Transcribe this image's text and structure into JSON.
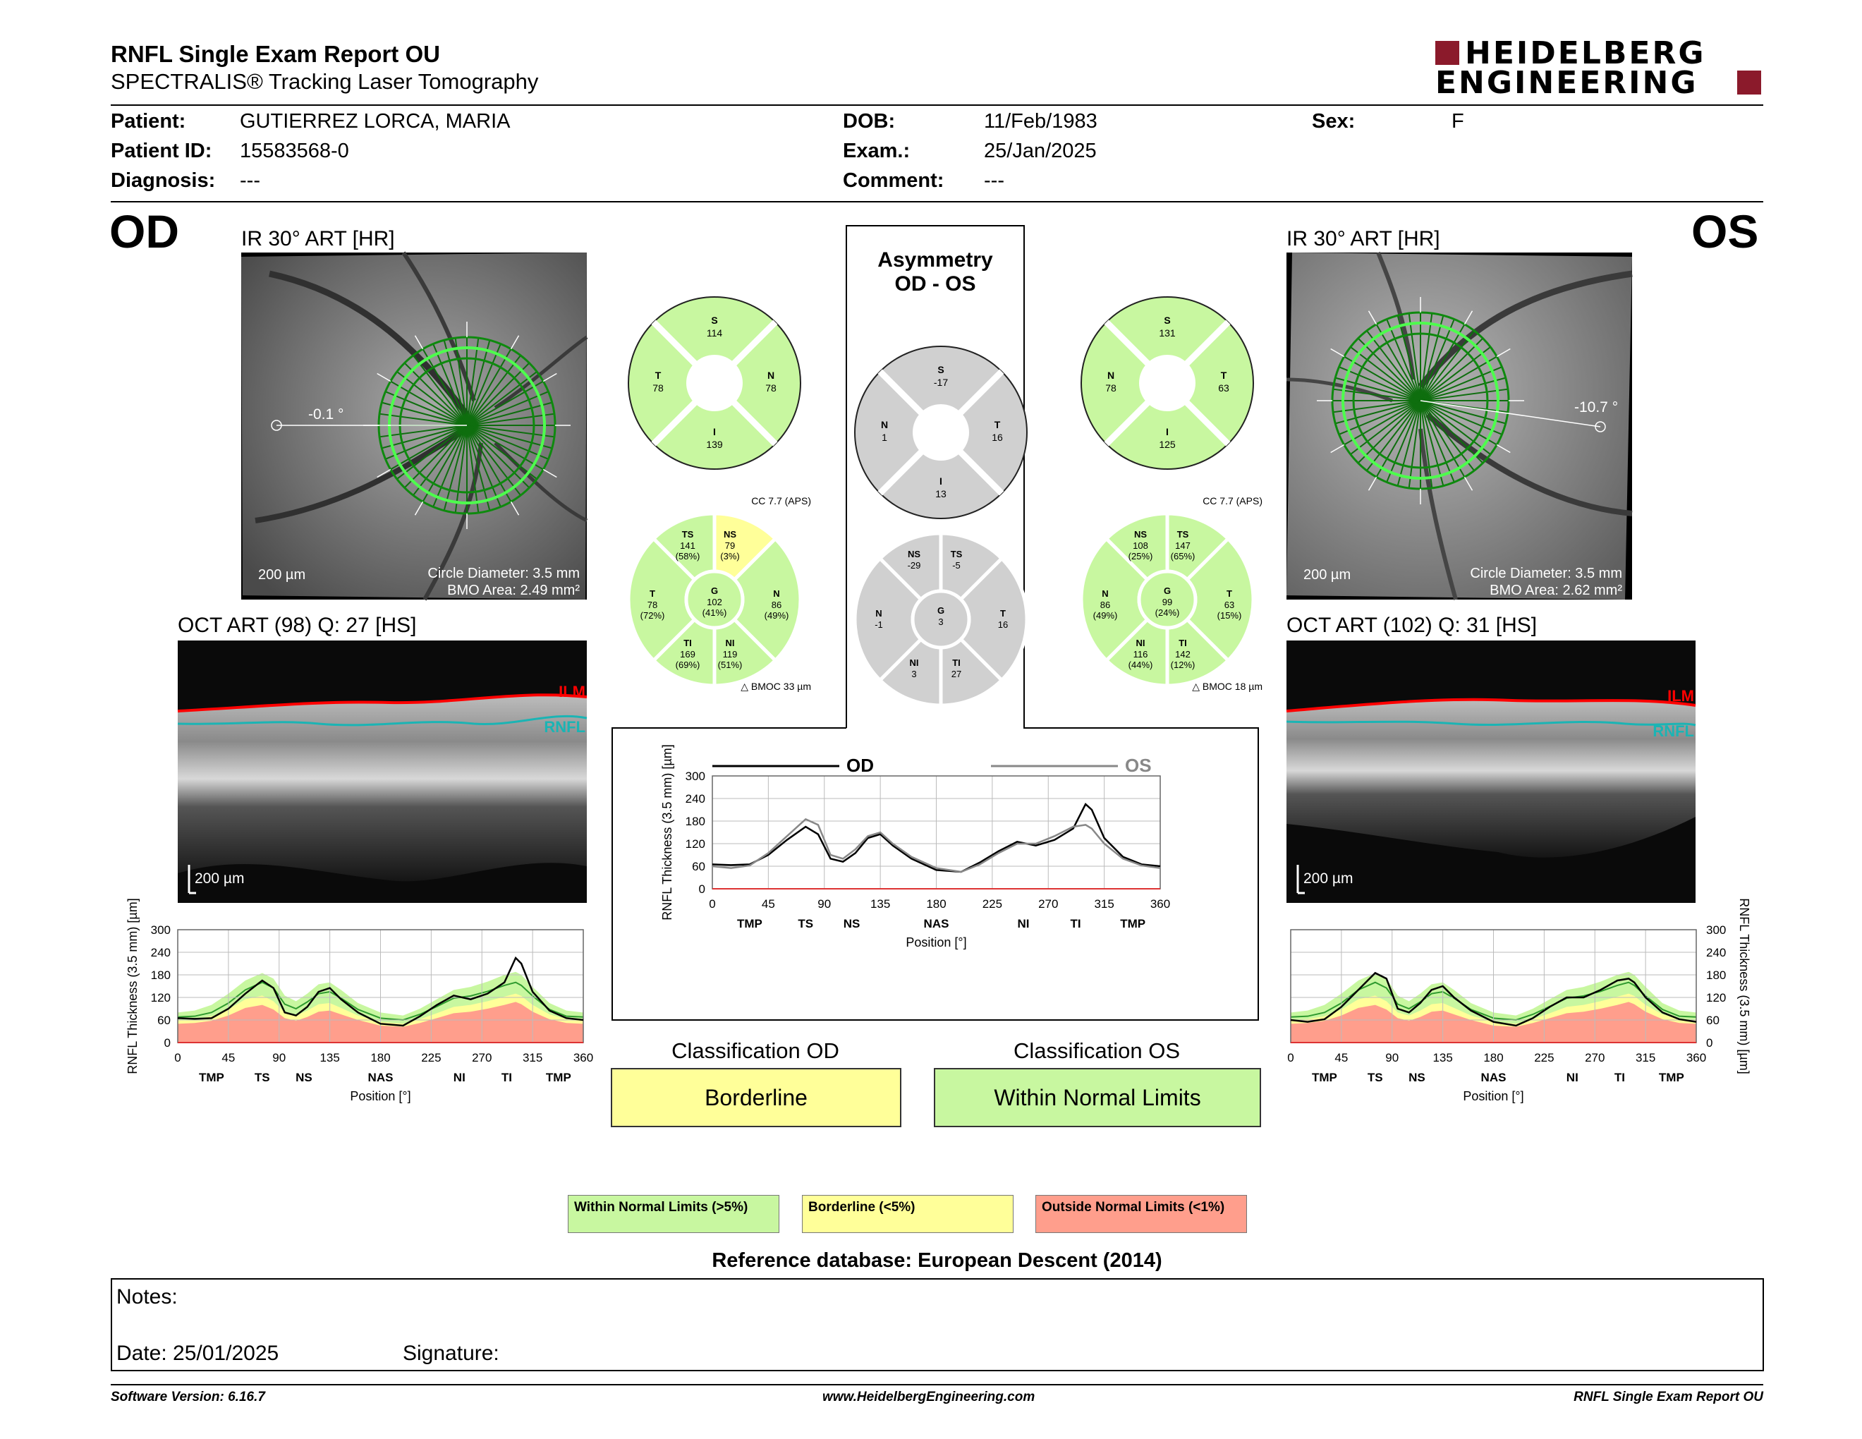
{
  "header": {
    "title": "RNFL Single Exam Report OU",
    "subtitle": "SPECTRALIS® Tracking Laser Tomography",
    "logo_line1": "HEIDELBERG",
    "logo_line2": "ENGINEERING"
  },
  "patient": {
    "patient_label": "Patient:",
    "patient_value": "GUTIERREZ LORCA, MARIA",
    "id_label": "Patient ID:",
    "id_value": "15583568-0",
    "diag_label": "Diagnosis:",
    "diag_value": "---",
    "dob_label": "DOB:",
    "dob_value": "11/Feb/1983",
    "exam_label": "Exam.:",
    "exam_value": "25/Jan/2025",
    "comment_label": "Comment:",
    "comment_value": "---",
    "sex_label": "Sex:",
    "sex_value": "F"
  },
  "od": {
    "eye": "OD",
    "fundus_title": "IR 30° ART [HR]",
    "angle": "-0.1 °",
    "scale": "200 µm",
    "circle_diameter": "Circle Diameter: 3.5 mm",
    "bmo_area": "BMO Area: 2.49 mm²",
    "oct_title": "OCT ART (98) Q: 27 [HS]",
    "oct_scale": "200 µm",
    "ilm": "ILM",
    "rnfl": "RNFL"
  },
  "os": {
    "eye": "OS",
    "fundus_title": "IR 30° ART [HR]",
    "angle": "-10.7 °",
    "scale": "200 µm",
    "circle_diameter": "Circle Diameter: 3.5 mm",
    "bmo_area": "BMO Area: 2.62 mm²",
    "oct_title": "OCT ART (102) Q: 31 [HS]",
    "oct_scale": "200 µm",
    "ilm": "ILM",
    "rnfl": "RNFL"
  },
  "asymmetry": {
    "title1": "Asymmetry",
    "title2": "OD - OS"
  },
  "circles": {
    "od_quad": {
      "S": "114",
      "T": "78",
      "N": "78",
      "I": "139"
    },
    "os_quad": {
      "S": "131",
      "N": "78",
      "T": "63",
      "I": "125"
    },
    "asym_quad": {
      "S": "-17",
      "N": "1",
      "T": "16",
      "I": "13"
    },
    "od_sect": {
      "cc": "CC 7.7 (APS)",
      "bmoc": "BMOC 33 µm",
      "TS": [
        "141",
        "(58%)"
      ],
      "NS": [
        "79",
        "(3%)"
      ],
      "T": [
        "78",
        "(72%)"
      ],
      "G": [
        "102",
        "(41%)"
      ],
      "N": [
        "86",
        "(49%)"
      ],
      "TI": [
        "169",
        "(69%)"
      ],
      "NI": [
        "119",
        "(51%)"
      ]
    },
    "os_sect": {
      "cc": "CC 7.7 (APS)",
      "bmoc": "BMOC 18 µm",
      "NS": [
        "108",
        "(25%)"
      ],
      "TS": [
        "147",
        "(65%)"
      ],
      "N": [
        "86",
        "(49%)"
      ],
      "G": [
        "99",
        "(24%)"
      ],
      "T": [
        "63",
        "(15%)"
      ],
      "NI": [
        "116",
        "(44%)"
      ],
      "TI": [
        "142",
        "(12%)"
      ]
    },
    "asym_sect": {
      "NS": "-29",
      "TS": "-5",
      "N": "-1",
      "G": "3",
      "T": "16",
      "NI": "3",
      "TI": "27"
    }
  },
  "chart_data": [
    {
      "type": "line",
      "name": "asymmetry-profile",
      "ylabel": "RNFL Thickness (3.5 mm) [µm]",
      "xlabel": "Position [°]",
      "xlim": [
        0,
        360
      ],
      "ylim": [
        0,
        300
      ],
      "xticks": [
        "0",
        "45",
        "90",
        "135",
        "180",
        "225",
        "270",
        "315",
        "360"
      ],
      "yticks": [
        "0",
        "60",
        "120",
        "180",
        "240",
        "300"
      ],
      "sectors": [
        "TMP",
        "TS",
        "NS",
        "NAS",
        "NI",
        "TI",
        "TMP"
      ],
      "x": [
        0,
        15,
        30,
        45,
        60,
        75,
        85,
        95,
        105,
        115,
        125,
        135,
        145,
        160,
        180,
        200,
        215,
        230,
        245,
        260,
        275,
        290,
        300,
        305,
        315,
        330,
        345,
        360
      ],
      "series": [
        {
          "name": "OD",
          "values": [
            65,
            63,
            65,
            90,
            130,
            165,
            145,
            80,
            72,
            95,
            135,
            145,
            115,
            80,
            50,
            45,
            70,
            100,
            125,
            115,
            130,
            160,
            225,
            210,
            135,
            85,
            65,
            60
          ]
        },
        {
          "name": "OS",
          "values": [
            60,
            55,
            62,
            95,
            140,
            185,
            170,
            90,
            80,
            105,
            140,
            150,
            120,
            85,
            55,
            45,
            65,
            95,
            120,
            120,
            140,
            165,
            170,
            160,
            120,
            80,
            62,
            55
          ]
        }
      ],
      "legend": [
        "OD",
        "OS"
      ]
    },
    {
      "type": "area",
      "name": "od-profile",
      "ylabel": "RNFL Thickness (3.5 mm) [µm]",
      "xlabel": "Position [°]",
      "xlim": [
        0,
        360
      ],
      "ylim": [
        0,
        300
      ],
      "x": [
        0,
        15,
        30,
        45,
        60,
        75,
        85,
        95,
        105,
        115,
        125,
        135,
        145,
        160,
        180,
        200,
        215,
        230,
        245,
        260,
        275,
        290,
        300,
        305,
        315,
        330,
        345,
        360
      ],
      "series": [
        {
          "name": "OD",
          "values": [
            65,
            63,
            65,
            90,
            130,
            165,
            145,
            80,
            72,
            95,
            135,
            145,
            115,
            80,
            50,
            45,
            70,
            100,
            125,
            115,
            130,
            160,
            225,
            210,
            135,
            85,
            65,
            60
          ]
        }
      ]
    },
    {
      "type": "area",
      "name": "os-profile",
      "ylabel": "RNFL Thickness (3.5 mm) [µm]",
      "xlabel": "Position [°]",
      "xlim": [
        0,
        360
      ],
      "ylim": [
        0,
        300
      ],
      "x": [
        0,
        15,
        30,
        45,
        60,
        75,
        85,
        95,
        105,
        115,
        125,
        135,
        145,
        160,
        180,
        200,
        215,
        230,
        245,
        260,
        275,
        290,
        300,
        305,
        315,
        330,
        345,
        360
      ],
      "series": [
        {
          "name": "OS",
          "values": [
            60,
            55,
            62,
            95,
            140,
            185,
            170,
            90,
            80,
            105,
            140,
            150,
            120,
            85,
            55,
            45,
            65,
            95,
            120,
            120,
            140,
            165,
            170,
            160,
            120,
            80,
            62,
            55
          ]
        }
      ]
    }
  ],
  "norms": {
    "x": [
      0,
      15,
      30,
      45,
      60,
      75,
      85,
      95,
      105,
      115,
      125,
      135,
      145,
      160,
      180,
      200,
      215,
      230,
      245,
      260,
      275,
      290,
      300,
      305,
      315,
      330,
      345,
      360
    ],
    "red": [
      50,
      52,
      58,
      72,
      92,
      100,
      88,
      65,
      58,
      68,
      82,
      85,
      75,
      60,
      45,
      42,
      52,
      65,
      78,
      82,
      90,
      100,
      108,
      102,
      82,
      62,
      52,
      50
    ],
    "yellow": [
      60,
      62,
      70,
      88,
      115,
      125,
      110,
      80,
      72,
      85,
      102,
      105,
      92,
      72,
      55,
      50,
      62,
      78,
      95,
      100,
      110,
      122,
      130,
      124,
      100,
      75,
      62,
      60
    ],
    "green": [
      80,
      85,
      100,
      130,
      165,
      185,
      170,
      125,
      110,
      130,
      155,
      160,
      140,
      105,
      80,
      72,
      90,
      115,
      140,
      148,
      162,
      180,
      188,
      180,
      148,
      105,
      85,
      80
    ],
    "mean": [
      68,
      70,
      80,
      105,
      140,
      160,
      145,
      102,
      90,
      108,
      130,
      135,
      118,
      88,
      65,
      60,
      75,
      96,
      118,
      124,
      136,
      152,
      160,
      152,
      124,
      88,
      70,
      68
    ]
  },
  "colors": {
    "wnl": "#c8f7a0",
    "borderline": "#ffff99",
    "onl": "#ff9e8c",
    "grey": "#d0d0d0",
    "ilm": "#ff0000",
    "rnfl": "#1bb4b4",
    "scan": "#1faa1f"
  },
  "classification": {
    "od_label": "Classification OD",
    "od_value": "Borderline",
    "os_label": "Classification OS",
    "os_value": "Within Normal Limits"
  },
  "legend": {
    "wnl": "Within Normal Limits (>5%)",
    "borderline": "Borderline (<5%)",
    "onl": "Outside Normal Limits (<1%)"
  },
  "reference": "Reference database: European Descent (2014)",
  "notes": {
    "notes_label": "Notes:",
    "date_label": "Date: 25/01/2025",
    "signature_label": "Signature:"
  },
  "footer": {
    "version": "Software Version: 6.16.7",
    "website": "www.HeidelbergEngineering.com",
    "report": "RNFL Single Exam Report OU"
  }
}
